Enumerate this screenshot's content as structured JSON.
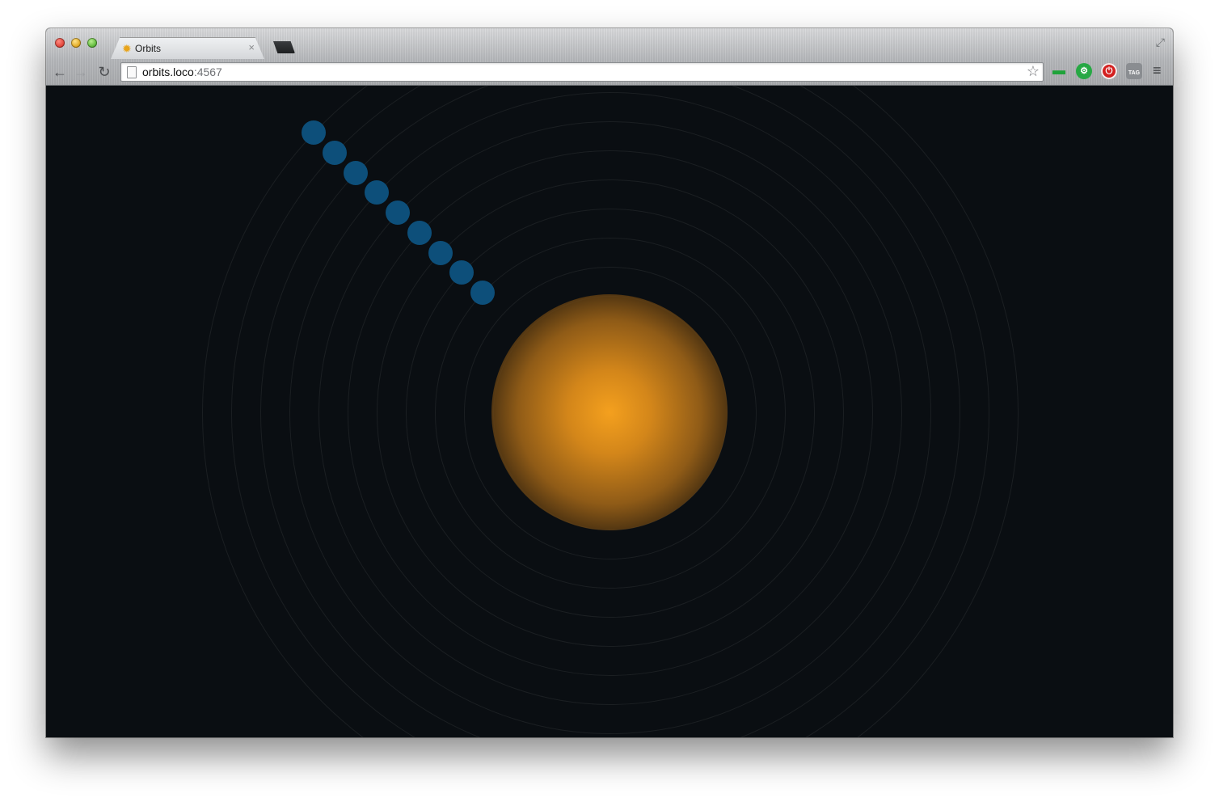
{
  "browser": {
    "tab": {
      "title": "Orbits",
      "favicon": "sun-favicon"
    },
    "address": {
      "host": "orbits.loco",
      "port": ":4567"
    },
    "extensions": [
      {
        "name": "green-bug-extension-icon",
        "color": "#1fa33a"
      },
      {
        "name": "green-gear-extension-icon",
        "color": "#27a844"
      },
      {
        "name": "red-power-extension-icon",
        "color": "#d42020"
      },
      {
        "name": "tag-extension-icon",
        "label": "TAG",
        "color": "#8a8d91"
      }
    ]
  },
  "scene": {
    "background": "#0a0e12",
    "sun_color": "#f4a01e",
    "planet_color": "#0d4f7a",
    "ring_count": 14,
    "planet_count": 9
  }
}
